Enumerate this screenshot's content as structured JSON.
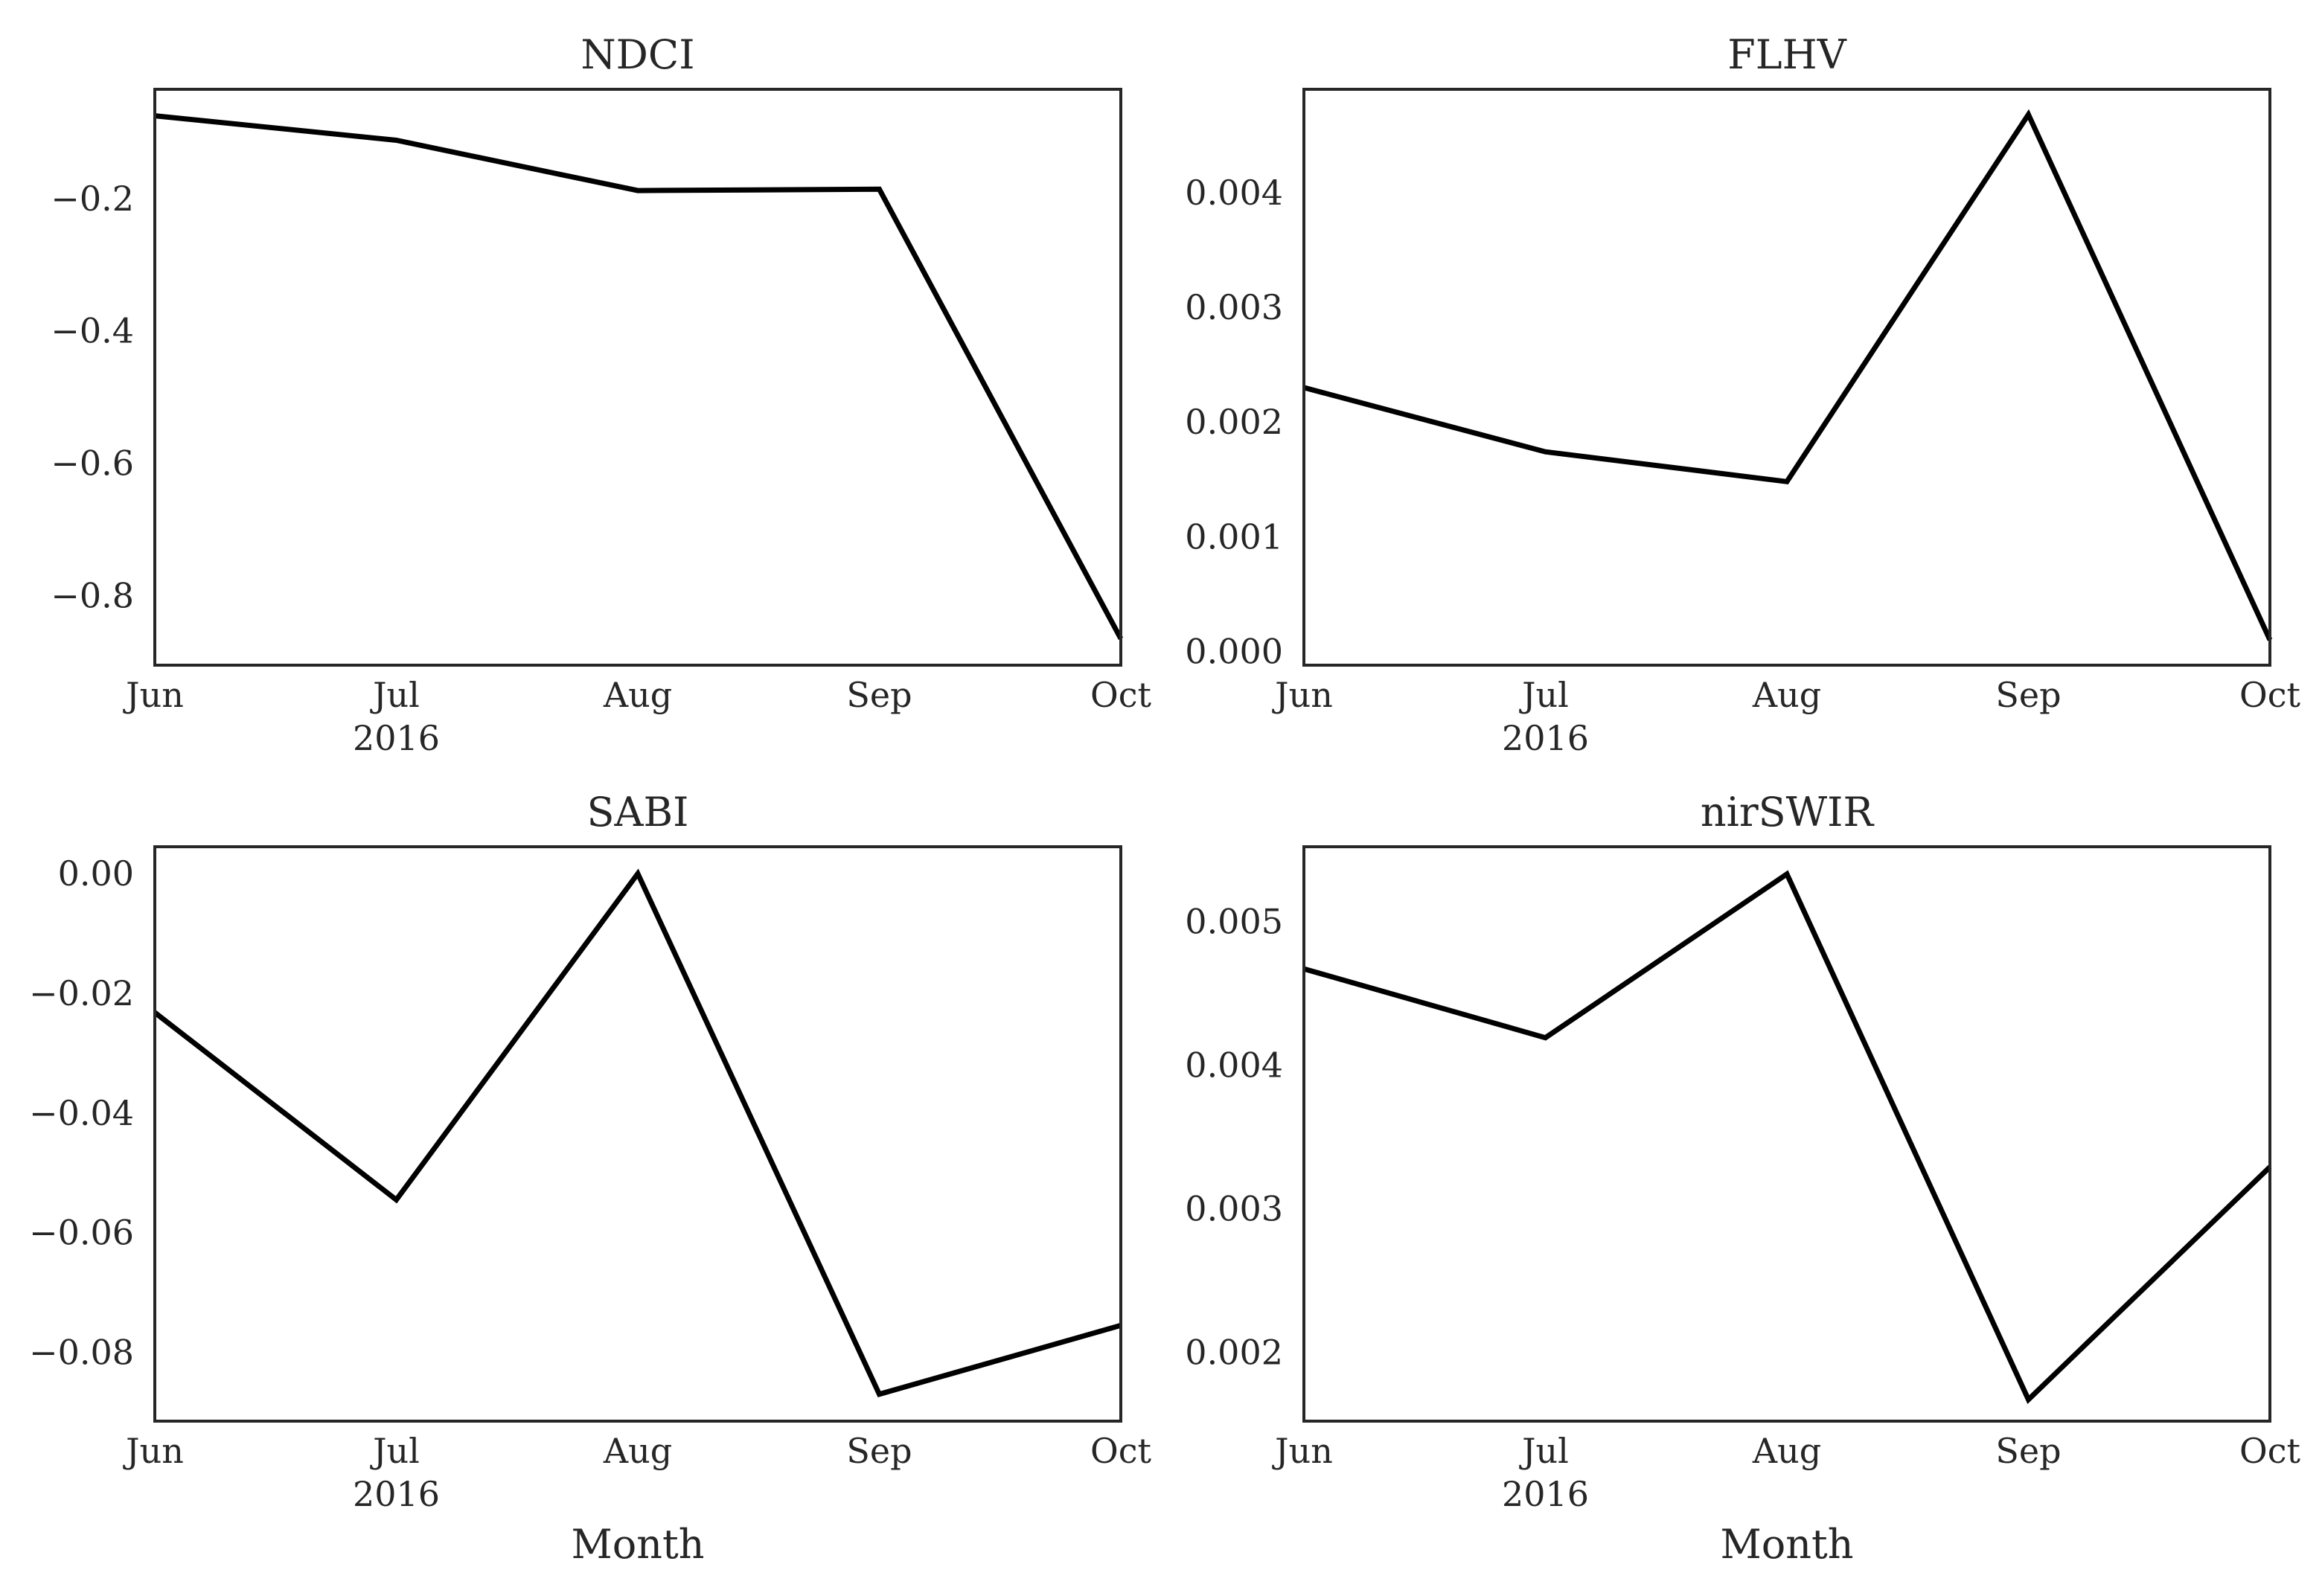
{
  "chart_data": [
    {
      "type": "line",
      "title": "NDCI",
      "categories": [
        "Jun",
        "Jul",
        "Aug",
        "Sep",
        "Oct"
      ],
      "x_year_label": "2016",
      "xlabel": "",
      "ylim": [
        -0.905,
        -0.035
      ],
      "yticks": [
        -0.2,
        -0.4,
        -0.6,
        -0.8
      ],
      "ytick_labels": [
        "−0.2",
        "−0.4",
        "−0.6",
        "−0.8"
      ],
      "series": [
        {
          "values": [
            -0.075,
            -0.112,
            -0.188,
            -0.186,
            -0.865
          ]
        }
      ],
      "grid": false,
      "color": "#000000"
    },
    {
      "type": "line",
      "title": "FLHV",
      "categories": [
        "Jun",
        "Jul",
        "Aug",
        "Sep",
        "Oct"
      ],
      "x_year_label": "2016",
      "xlabel": "",
      "ylim": [
        -0.00012,
        0.0049
      ],
      "yticks": [
        0.0,
        0.001,
        0.002,
        0.003,
        0.004
      ],
      "ytick_labels": [
        "0.000",
        "0.001",
        "0.002",
        "0.003",
        "0.004"
      ],
      "series": [
        {
          "values": [
            0.0023,
            0.00174,
            0.00148,
            0.00468,
            0.0001
          ]
        }
      ],
      "grid": false,
      "color": "#000000"
    },
    {
      "type": "line",
      "title": "SABI",
      "categories": [
        "Jun",
        "Jul",
        "Aug",
        "Sep",
        "Oct"
      ],
      "x_year_label": "2016",
      "xlabel": "Month",
      "ylim": [
        -0.0915,
        0.0045
      ],
      "yticks": [
        0.0,
        -0.02,
        -0.04,
        -0.06,
        -0.08
      ],
      "ytick_labels": [
        "0.00",
        "−0.02",
        "−0.04",
        "−0.06",
        "−0.08"
      ],
      "series": [
        {
          "values": [
            -0.0232,
            -0.0545,
            0.0,
            -0.087,
            -0.0755
          ]
        }
      ],
      "grid": false,
      "color": "#000000"
    },
    {
      "type": "line",
      "title": "nirSWIR",
      "categories": [
        "Jun",
        "Jul",
        "Aug",
        "Sep",
        "Oct"
      ],
      "x_year_label": "2016",
      "xlabel": "Month",
      "ylim": [
        0.00152,
        0.00552
      ],
      "yticks": [
        0.002,
        0.003,
        0.004,
        0.005
      ],
      "ytick_labels": [
        "0.002",
        "0.003",
        "0.004",
        "0.005"
      ],
      "series": [
        {
          "values": [
            0.00467,
            0.00419,
            0.00533,
            0.00167,
            0.00329
          ]
        }
      ],
      "grid": false,
      "color": "#000000"
    }
  ]
}
